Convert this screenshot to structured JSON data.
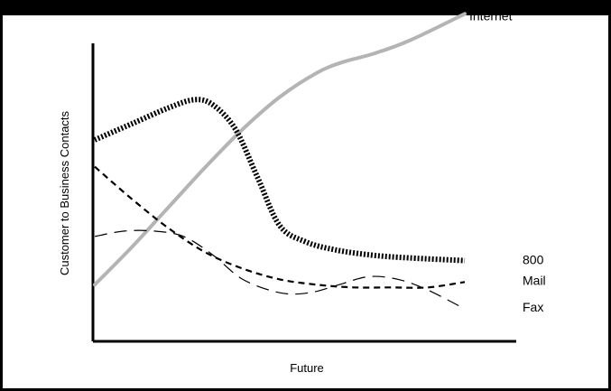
{
  "chart_data": {
    "type": "line",
    "title": "",
    "xlabel": "Future",
    "ylabel": "Customer to Business Contacts",
    "xlim": [
      0,
      100
    ],
    "ylim": [
      0,
      100
    ],
    "grid": false,
    "legend": "inline labels at right end of each line",
    "series": [
      {
        "name": "Internet",
        "color": "#b4b4b4",
        "style": "solid-thick",
        "x": [
          0,
          10,
          20,
          30,
          40,
          50,
          60,
          67,
          75,
          85,
          100
        ],
        "y": [
          10,
          24,
          39,
          54,
          68,
          80,
          89,
          93,
          96,
          101,
          111
        ]
      },
      {
        "name": "800",
        "color": "#000000",
        "style": "dotted-thick",
        "x": [
          0,
          10,
          20,
          27,
          32,
          38,
          44,
          50,
          57,
          65,
          75,
          85,
          100
        ],
        "y": [
          64,
          70,
          76,
          79,
          77,
          68,
          50,
          32,
          26,
          23,
          21,
          20,
          19
        ]
      },
      {
        "name": "Mail",
        "color": "#000000",
        "style": "dashed",
        "x": [
          0,
          10,
          20,
          30,
          40,
          50,
          60,
          70,
          80,
          90,
          100
        ],
        "y": [
          54,
          42,
          31,
          22,
          16,
          12,
          10,
          9,
          9,
          9,
          11
        ]
      },
      {
        "name": "Fax",
        "color": "#000000",
        "style": "long-dashed-thin",
        "x": [
          0,
          8,
          16,
          24,
          32,
          40,
          50,
          58,
          66,
          74,
          82,
          90,
          100
        ],
        "y": [
          28,
          30,
          30,
          28,
          21,
          12,
          7,
          7,
          10,
          13,
          12,
          8,
          1
        ]
      }
    ]
  }
}
